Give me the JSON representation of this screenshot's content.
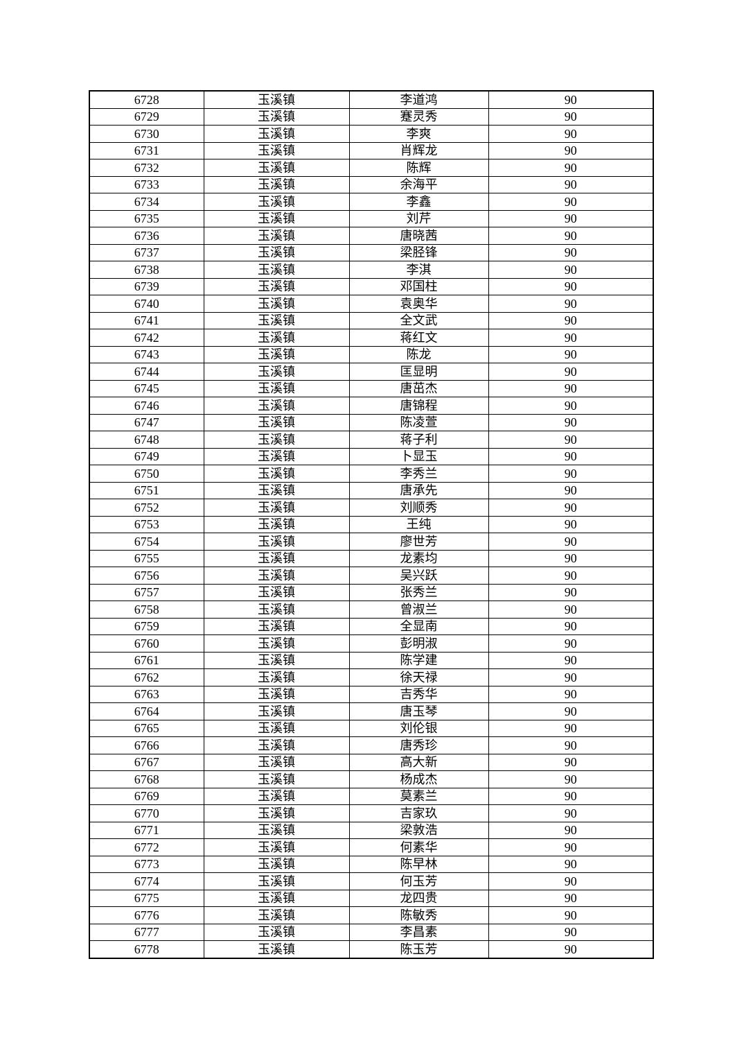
{
  "page": {
    "background_color": "#ffffff",
    "text_color": "#000000"
  },
  "table": {
    "border_color": "#000000",
    "rows": [
      {
        "serial": "6728",
        "town": "玉溪镇",
        "name": "李道鸿",
        "score": "90"
      },
      {
        "serial": "6729",
        "town": "玉溪镇",
        "name": "蹇灵秀",
        "score": "90"
      },
      {
        "serial": "6730",
        "town": "玉溪镇",
        "name": "李爽",
        "score": "90"
      },
      {
        "serial": "6731",
        "town": "玉溪镇",
        "name": "肖辉龙",
        "score": "90"
      },
      {
        "serial": "6732",
        "town": "玉溪镇",
        "name": "陈辉",
        "score": "90"
      },
      {
        "serial": "6733",
        "town": "玉溪镇",
        "name": "余海平",
        "score": "90"
      },
      {
        "serial": "6734",
        "town": "玉溪镇",
        "name": "李鑫",
        "score": "90"
      },
      {
        "serial": "6735",
        "town": "玉溪镇",
        "name": "刘芹",
        "score": "90"
      },
      {
        "serial": "6736",
        "town": "玉溪镇",
        "name": "唐晓茜",
        "score": "90"
      },
      {
        "serial": "6737",
        "town": "玉溪镇",
        "name": "梁胫锋",
        "score": "90"
      },
      {
        "serial": "6738",
        "town": "玉溪镇",
        "name": "李淇",
        "score": "90"
      },
      {
        "serial": "6739",
        "town": "玉溪镇",
        "name": "邓国柱",
        "score": "90"
      },
      {
        "serial": "6740",
        "town": "玉溪镇",
        "name": "袁奥华",
        "score": "90"
      },
      {
        "serial": "6741",
        "town": "玉溪镇",
        "name": "全文武",
        "score": "90"
      },
      {
        "serial": "6742",
        "town": "玉溪镇",
        "name": "蒋红文",
        "score": "90"
      },
      {
        "serial": "6743",
        "town": "玉溪镇",
        "name": "陈龙",
        "score": "90"
      },
      {
        "serial": "6744",
        "town": "玉溪镇",
        "name": "匡显明",
        "score": "90"
      },
      {
        "serial": "6745",
        "town": "玉溪镇",
        "name": "唐茁杰",
        "score": "90"
      },
      {
        "serial": "6746",
        "town": "玉溪镇",
        "name": "唐锦程",
        "score": "90"
      },
      {
        "serial": "6747",
        "town": "玉溪镇",
        "name": "陈凌萱",
        "score": "90"
      },
      {
        "serial": "6748",
        "town": "玉溪镇",
        "name": "蒋子利",
        "score": "90"
      },
      {
        "serial": "6749",
        "town": "玉溪镇",
        "name": "卜显玉",
        "score": "90"
      },
      {
        "serial": "6750",
        "town": "玉溪镇",
        "name": "李秀兰",
        "score": "90"
      },
      {
        "serial": "6751",
        "town": "玉溪镇",
        "name": "唐承先",
        "score": "90"
      },
      {
        "serial": "6752",
        "town": "玉溪镇",
        "name": "刘顺秀",
        "score": "90"
      },
      {
        "serial": "6753",
        "town": "玉溪镇",
        "name": "王纯",
        "score": "90"
      },
      {
        "serial": "6754",
        "town": "玉溪镇",
        "name": "廖世芳",
        "score": "90"
      },
      {
        "serial": "6755",
        "town": "玉溪镇",
        "name": "龙素均",
        "score": "90"
      },
      {
        "serial": "6756",
        "town": "玉溪镇",
        "name": "吴兴跃",
        "score": "90"
      },
      {
        "serial": "6757",
        "town": "玉溪镇",
        "name": "张秀兰",
        "score": "90"
      },
      {
        "serial": "6758",
        "town": "玉溪镇",
        "name": "曾淑兰",
        "score": "90"
      },
      {
        "serial": "6759",
        "town": "玉溪镇",
        "name": "全显南",
        "score": "90"
      },
      {
        "serial": "6760",
        "town": "玉溪镇",
        "name": "彭明淑",
        "score": "90"
      },
      {
        "serial": "6761",
        "town": "玉溪镇",
        "name": "陈学建",
        "score": "90"
      },
      {
        "serial": "6762",
        "town": "玉溪镇",
        "name": "徐天禄",
        "score": "90"
      },
      {
        "serial": "6763",
        "town": "玉溪镇",
        "name": "吉秀华",
        "score": "90"
      },
      {
        "serial": "6764",
        "town": "玉溪镇",
        "name": "唐玉琴",
        "score": "90"
      },
      {
        "serial": "6765",
        "town": "玉溪镇",
        "name": "刘伦银",
        "score": "90"
      },
      {
        "serial": "6766",
        "town": "玉溪镇",
        "name": "唐秀珍",
        "score": "90"
      },
      {
        "serial": "6767",
        "town": "玉溪镇",
        "name": "高大新",
        "score": "90"
      },
      {
        "serial": "6768",
        "town": "玉溪镇",
        "name": "杨成杰",
        "score": "90"
      },
      {
        "serial": "6769",
        "town": "玉溪镇",
        "name": "莫素兰",
        "score": "90"
      },
      {
        "serial": "6770",
        "town": "玉溪镇",
        "name": "吉家玖",
        "score": "90"
      },
      {
        "serial": "6771",
        "town": "玉溪镇",
        "name": "梁敦浩",
        "score": "90"
      },
      {
        "serial": "6772",
        "town": "玉溪镇",
        "name": "何素华",
        "score": "90"
      },
      {
        "serial": "6773",
        "town": "玉溪镇",
        "name": "陈早林",
        "score": "90"
      },
      {
        "serial": "6774",
        "town": "玉溪镇",
        "name": "何玉芳",
        "score": "90"
      },
      {
        "serial": "6775",
        "town": "玉溪镇",
        "name": "龙四贵",
        "score": "90"
      },
      {
        "serial": "6776",
        "town": "玉溪镇",
        "name": "陈敏秀",
        "score": "90"
      },
      {
        "serial": "6777",
        "town": "玉溪镇",
        "name": "李昌素",
        "score": "90"
      },
      {
        "serial": "6778",
        "town": "玉溪镇",
        "name": "陈玉芳",
        "score": "90"
      }
    ]
  }
}
